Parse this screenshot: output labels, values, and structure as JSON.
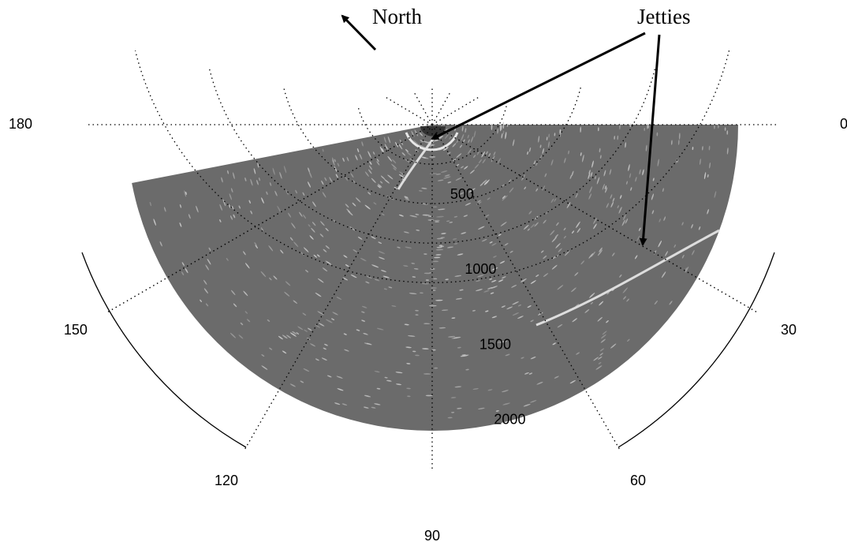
{
  "chart_data": {
    "type": "polar",
    "annotations": [
      "North",
      "Jetties"
    ],
    "thetaticks": [
      0,
      30,
      60,
      90,
      120,
      150,
      180
    ],
    "rlim": [
      0,
      2000
    ],
    "rticks": [
      500,
      1000,
      1500,
      2000
    ],
    "grid": true,
    "color": "#6b6b6b"
  }
}
